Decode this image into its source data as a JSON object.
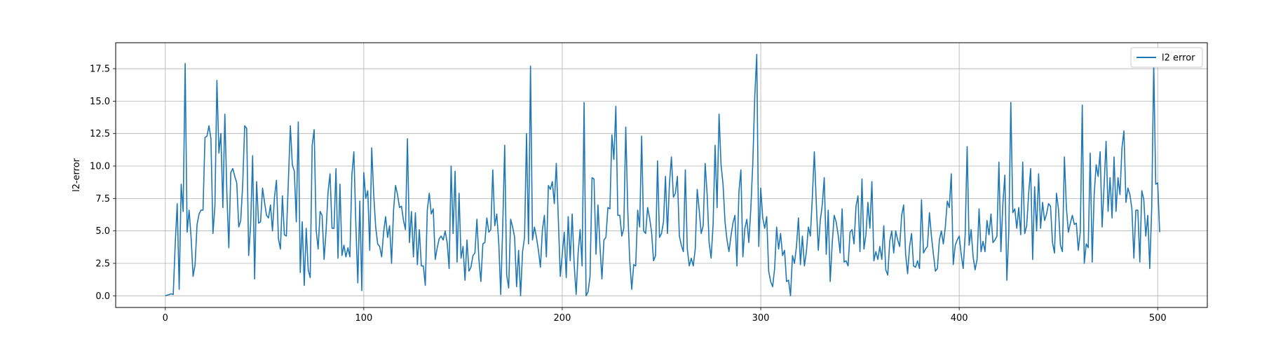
{
  "chart_data": {
    "type": "line",
    "title": "",
    "xlabel": "",
    "ylabel": "l2-error",
    "xlim": [
      -25,
      525
    ],
    "ylim": [
      -0.9,
      19.5
    ],
    "xticks": [
      0,
      100,
      200,
      300,
      400,
      500
    ],
    "xtick_labels": [
      "0",
      "100",
      "200",
      "300",
      "400",
      "500"
    ],
    "yticks": [
      0.0,
      2.5,
      5.0,
      7.5,
      10.0,
      12.5,
      15.0,
      17.5
    ],
    "ytick_labels": [
      "0.0",
      "2.5",
      "5.0",
      "7.5",
      "10.0",
      "12.5",
      "15.0",
      "17.5"
    ],
    "grid": true,
    "legend_position": "upper right",
    "series": [
      {
        "name": "l2 error",
        "color": "#1f77b4",
        "x_start": 0,
        "x_step": 1,
        "values": [
          0.0,
          0.05,
          0.1,
          0.15,
          0.1,
          4.0,
          7.1,
          0.5,
          8.6,
          6.5,
          17.9,
          4.9,
          6.6,
          4.5,
          1.5,
          2.4,
          5.5,
          6.3,
          6.6,
          6.6,
          12.2,
          12.3,
          13.1,
          12.1,
          4.8,
          6.9,
          16.6,
          11.0,
          12.5,
          6.8,
          14.0,
          8.0,
          3.7,
          9.5,
          9.8,
          9.2,
          8.7,
          5.3,
          5.8,
          8.6,
          13.1,
          12.9,
          3.1,
          5.5,
          10.8,
          1.3,
          8.8,
          5.6,
          5.7,
          8.3,
          7.2,
          6.2,
          6.0,
          7.0,
          5.0,
          7.6,
          8.9,
          4.4,
          3.6,
          7.7,
          4.7,
          4.6,
          8.8,
          13.1,
          10.1,
          9.6,
          5.7,
          13.4,
          1.8,
          5.7,
          0.8,
          5.2,
          2.0,
          1.4,
          11.6,
          12.8,
          5.1,
          3.6,
          6.5,
          6.2,
          2.8,
          5.0,
          8.0,
          9.4,
          5.2,
          5.2,
          9.8,
          2.9,
          8.6,
          3.1,
          3.9,
          3.0,
          3.7,
          3.0,
          9.3,
          11.1,
          5.5,
          1.0,
          7.3,
          0.4,
          9.5,
          7.5,
          8.1,
          3.5,
          11.4,
          7.8,
          5.3,
          4.0,
          3.8,
          3.0,
          4.9,
          6.1,
          4.5,
          5.4,
          2.5,
          6.6,
          8.5,
          7.8,
          6.8,
          6.9,
          5.8,
          5.1,
          12.1,
          4.1,
          6.5,
          3.0,
          6.4,
          2.4,
          5.1,
          2.3,
          2.3,
          0.8,
          6.6,
          7.9,
          6.3,
          6.7,
          2.8,
          3.7,
          4.4,
          4.6,
          4.3,
          5.0,
          4.1,
          2.1,
          10.0,
          4.8,
          9.6,
          2.6,
          7.9,
          2.9,
          3.8,
          1.2,
          4.3,
          1.9,
          2.2,
          3.1,
          3.3,
          5.9,
          2.8,
          1.1,
          4.0,
          4.1,
          6.0,
          4.9,
          5.1,
          9.7,
          5.4,
          6.3,
          4.1,
          0.1,
          5.3,
          11.6,
          1.6,
          0.6,
          5.9,
          5.3,
          4.5,
          0.7,
          3.5,
          0.0,
          3.4,
          4.5,
          12.5,
          4.0,
          17.7,
          4.3,
          5.3,
          4.5,
          3.5,
          2.2,
          5.1,
          6.2,
          3.0,
          8.5,
          8.2,
          8.8,
          7.1,
          10.2,
          6.0,
          1.5,
          3.2,
          4.9,
          1.4,
          6.1,
          2.7,
          6.3,
          2.4,
          0.1,
          3.3,
          5.1,
          2.3,
          14.9,
          0.0,
          0.3,
          1.5,
          9.1,
          9.0,
          3.2,
          7.0,
          3.8,
          1.3,
          4.3,
          4.5,
          6.8,
          6.7,
          12.4,
          10.5,
          14.6,
          6.2,
          6.2,
          4.6,
          5.2,
          13.0,
          6.6,
          2.7,
          0.5,
          2.4,
          2.3,
          6.6,
          5.3,
          12.3,
          5.0,
          4.8,
          6.8,
          6.0,
          4.9,
          2.7,
          3.1,
          10.4,
          4.5,
          4.8,
          5.7,
          9.2,
          4.8,
          8.6,
          10.7,
          7.6,
          7.9,
          9.2,
          4.6,
          3.9,
          3.4,
          9.7,
          3.6,
          2.3,
          2.9,
          2.3,
          3.6,
          8.2,
          6.6,
          4.8,
          5.4,
          10.2,
          7.8,
          4.1,
          2.9,
          5.5,
          11.6,
          6.8,
          14.0,
          10.1,
          8.6,
          5.7,
          4.3,
          3.4,
          4.6,
          5.6,
          6.2,
          2.3,
          8.0,
          9.7,
          3.0,
          5.2,
          5.9,
          4.1,
          6.7,
          10.2,
          15.4,
          18.6,
          3.8,
          8.3,
          6.0,
          5.2,
          6.1,
          1.9,
          1.1,
          0.7,
          2.1,
          5.3,
          3.6,
          4.8,
          3.1,
          3.5,
          1.1,
          1.2,
          0.0,
          3.1,
          2.5,
          3.8,
          6.0,
          2.4,
          4.6,
          2.3,
          3.4,
          5.3,
          4.6,
          7.6,
          11.1,
          7.1,
          3.5,
          5.8,
          7.0,
          9.1,
          3.2,
          6.6,
          1.1,
          4.0,
          6.2,
          5.7,
          4.7,
          3.3,
          6.7,
          2.6,
          2.7,
          2.3,
          4.9,
          5.1,
          4.0,
          6.9,
          7.7,
          3.4,
          9.0,
          3.6,
          4.7,
          7.2,
          5.2,
          8.8,
          2.7,
          3.4,
          2.8,
          3.8,
          2.8,
          5.4,
          2.0,
          1.6,
          4.2,
          5.0,
          3.3,
          5.0,
          4.3,
          3.8,
          6.2,
          7.0,
          3.2,
          1.7,
          3.8,
          4.8,
          2.3,
          2.2,
          2.7,
          2.1,
          7.4,
          3.3,
          3.6,
          3.8,
          6.4,
          4.6,
          3.2,
          1.9,
          2.1,
          4.3,
          5.0,
          4.0,
          5.3,
          7.3,
          6.8,
          9.4,
          2.4,
          3.9,
          4.3,
          4.6,
          3.2,
          2.1,
          4.7,
          11.5,
          3.9,
          5.1,
          3.0,
          2.0,
          2.8,
          6.7,
          3.4,
          4.2,
          3.4,
          5.8,
          4.7,
          6.3,
          4.1,
          4.3,
          4.6,
          10.3,
          3.4,
          7.1,
          9.3,
          1.2,
          5.0,
          14.9,
          6.4,
          6.7,
          5.2,
          6.8,
          4.7,
          10.3,
          4.8,
          5.4,
          7.9,
          9.8,
          2.8,
          8.4,
          5.0,
          9.4,
          5.2,
          7.2,
          5.8,
          6.3,
          7.1,
          6.9,
          4.1,
          3.3,
          7.9,
          6.7,
          3.9,
          3.4,
          10.7,
          6.8,
          4.9,
          5.6,
          6.2,
          5.5,
          5.6,
          3.5,
          4.9,
          14.7,
          2.5,
          4.0,
          3.7,
          11.0,
          2.6,
          7.8,
          10.1,
          9.2,
          11.1,
          5.3,
          8.5,
          11.9,
          6.5,
          9.1,
          6.0,
          10.7,
          6.5,
          9.1,
          7.8,
          11.4,
          12.7,
          7.2,
          8.3,
          7.8,
          6.7,
          2.9,
          6.6,
          6.6,
          2.6,
          8.1,
          7.4,
          4.6,
          6.2,
          2.1,
          6.8,
          17.9,
          8.6,
          8.7,
          4.9
        ]
      }
    ]
  }
}
